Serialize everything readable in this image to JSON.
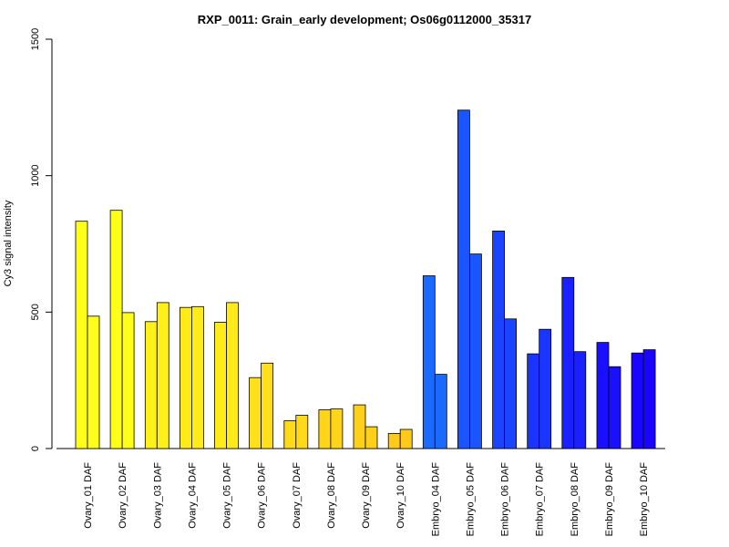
{
  "chart_data": {
    "type": "bar",
    "title": "RXP_0011: Grain_early development; Os06g0112000_35317",
    "xlabel": "",
    "ylabel": "Cy3 signal intensity",
    "ylim": [
      0,
      1500
    ],
    "yticks": [
      0,
      500,
      1000,
      1500
    ],
    "grid": false,
    "legend": "none",
    "categories": [
      "Ovary_01 DAF",
      "Ovary_02 DAF",
      "Ovary_03 DAF",
      "Ovary_04 DAF",
      "Ovary_05 DAF",
      "Ovary_06 DAF",
      "Ovary_07 DAF",
      "Ovary_08 DAF",
      "Ovary_09 DAF",
      "Ovary_10 DAF",
      "Embryo_04 DAF",
      "Embryo_05 DAF",
      "Embryo_06 DAF",
      "Embryo_07 DAF",
      "Embryo_08 DAF",
      "Embryo_09 DAF",
      "Embryo_10 DAF"
    ],
    "series": [
      {
        "values": [
          833,
          873,
          465,
          517,
          463,
          260,
          102,
          142,
          160,
          55,
          633,
          1240,
          797,
          347,
          627,
          389,
          350
        ]
      },
      {
        "values": [
          485,
          498,
          535,
          520,
          535,
          313,
          122,
          145,
          80,
          70,
          272,
          713,
          475,
          437,
          355,
          300,
          362
        ]
      }
    ],
    "colors": [
      "#FFFF1A",
      "#FFFF1A",
      "#FFF01A",
      "#FFEA1A",
      "#FFEA1A",
      "#FFE01A",
      "#FFDA1A",
      "#FFD51A",
      "#FFD01A",
      "#FFCA1A",
      "#1A6AFF",
      "#1A55FF",
      "#1A45FF",
      "#1A35FF",
      "#1A20FF",
      "#1A10FF",
      "#1A05FF"
    ]
  }
}
